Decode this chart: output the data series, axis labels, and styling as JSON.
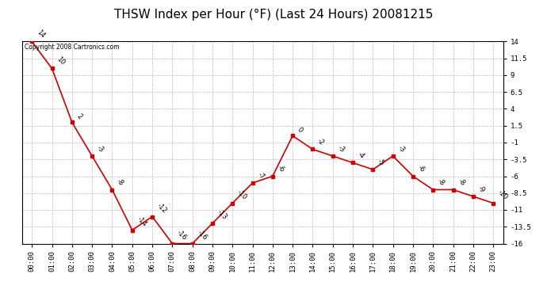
{
  "title": "THSW Index per Hour (°F) (Last 24 Hours) 20081215",
  "copyright": "Copyright 2008 Cartronics.com",
  "hours": [
    "00:00",
    "01:00",
    "02:00",
    "03:00",
    "04:00",
    "05:00",
    "06:00",
    "07:00",
    "08:00",
    "09:00",
    "10:00",
    "11:00",
    "12:00",
    "13:00",
    "14:00",
    "15:00",
    "16:00",
    "17:00",
    "18:00",
    "19:00",
    "20:00",
    "21:00",
    "22:00",
    "23:00"
  ],
  "values": [
    14,
    10,
    2,
    -3,
    -8,
    -14,
    -12,
    -16,
    -16,
    -13,
    -10,
    -7,
    -6,
    0,
    -2,
    -3,
    -4,
    -5,
    -3,
    -6,
    -8,
    -8,
    -9,
    -10
  ],
  "line_color": "#cc0000",
  "marker_color": "#cc0000",
  "bg_color": "#ffffff",
  "grid_color": "#bbbbbb",
  "ylim_min": -16.0,
  "ylim_max": 14.0,
  "yticks": [
    14.0,
    11.5,
    9.0,
    6.5,
    4.0,
    1.5,
    -1.0,
    -3.5,
    -6.0,
    -8.5,
    -11.0,
    -13.5,
    -16.0
  ],
  "title_fontsize": 11,
  "tick_fontsize": 6.5,
  "data_label_fontsize": 6
}
